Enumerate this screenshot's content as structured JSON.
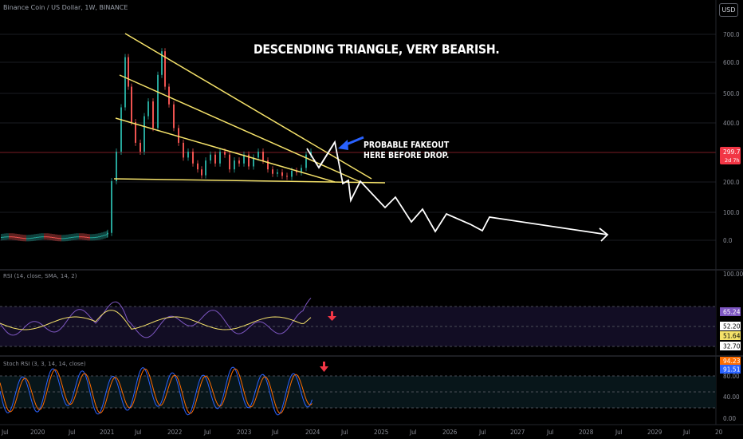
{
  "chart": {
    "title": "Binance Coin / US Dollar, 1W, BINANCE",
    "currency_button": "USD",
    "headline": "DESCENDING TRIANGLE, VERY BEARISH.",
    "annotation_line1": "PROBABLE FAKEOUT",
    "annotation_line2": "HERE BEFORE DROP.",
    "price_badge": "299.7",
    "price_badge_sub": "2d 7h",
    "accent_red": "#f23645",
    "accent_yellow": "#f5e26a",
    "accent_blue": "#2962ff"
  },
  "rsi_panel": {
    "title": "RSI (14, close, SMA, 14, 2)",
    "badges": [
      "65.24",
      "52.20",
      "51.64",
      "32.70"
    ],
    "ticks": [
      "100.00"
    ]
  },
  "stoch_panel": {
    "title": "Stoch RSI (3, 3, 14, 14, close)",
    "badges": [
      "94.23",
      "91.51"
    ],
    "ticks": [
      "80.00",
      "40.00",
      "0.00"
    ]
  },
  "chart_data": {
    "type": "line",
    "y_ticks": [
      "700.0",
      "600.0",
      "500.0",
      "400.0",
      "300.0",
      "200.0",
      "100.0",
      "0.0"
    ],
    "x_ticks": [
      "Jul",
      "2020",
      "Jul",
      "2021",
      "Jul",
      "2022",
      "Jul",
      "2023",
      "Jul",
      "2024",
      "Jul",
      "2025",
      "Jul",
      "2026",
      "Jul",
      "2027",
      "Jul",
      "2028",
      "Jul",
      "2029",
      "Jul",
      "20"
    ]
  }
}
